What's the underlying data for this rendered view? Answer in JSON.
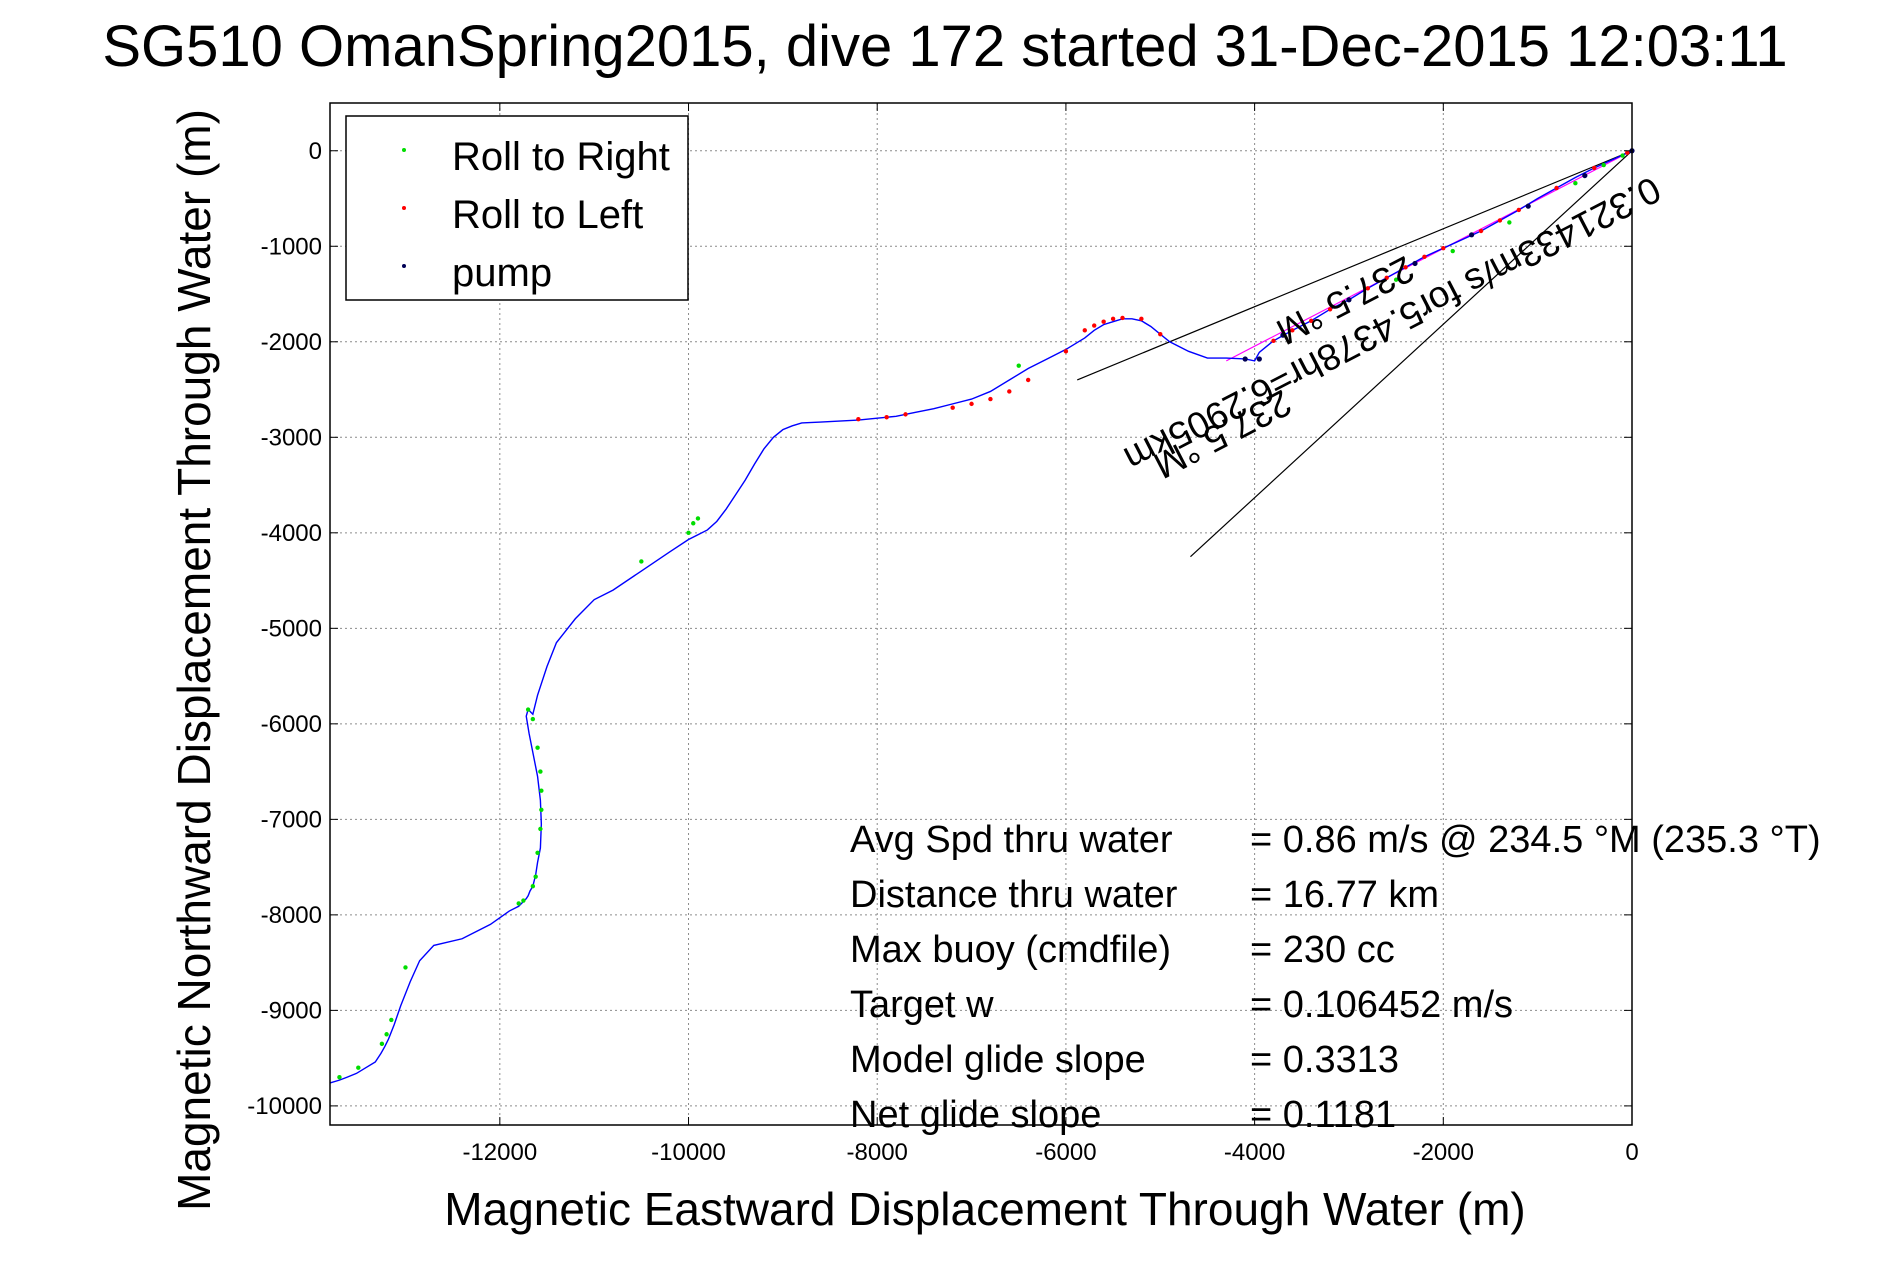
{
  "chart_data": {
    "type": "line",
    "title": "SG510 OmanSpring2015, dive 172 started 31-Dec-2015 12:03:11",
    "xlabel": "Magnetic Eastward Displacement Through Water (m)",
    "ylabel": "Magnetic Northward Displacement Through Water (m)",
    "xlim": [
      -13800,
      0
    ],
    "ylim": [
      -10200,
      500
    ],
    "grid": true,
    "x_ticks": [
      -12000,
      -10000,
      -8000,
      -6000,
      -4000,
      -2000,
      0
    ],
    "y_ticks": [
      0,
      -1000,
      -2000,
      -3000,
      -4000,
      -5000,
      -6000,
      -7000,
      -8000,
      -9000,
      -10000
    ],
    "x_tick_labels": [
      "-12000",
      "-10000",
      "-8000",
      "-6000",
      "-4000",
      "-2000",
      "0"
    ],
    "y_tick_labels": [
      "0",
      "-1000",
      "-2000",
      "-3000",
      "-4000",
      "-5000",
      "-6000",
      "-7000",
      "-8000",
      "-9000",
      "-10000"
    ],
    "legend_position": "top-left",
    "legend": [
      {
        "label": "Roll to Right",
        "color": "#00dd00"
      },
      {
        "label": "Roll to Left",
        "color": "#ff0000"
      },
      {
        "label": "pump",
        "color": "#000055"
      }
    ],
    "track_color": "#0000ff",
    "track": {
      "x": [
        0,
        -200,
        -400,
        -600,
        -800,
        -1000,
        -1200,
        -1400,
        -1600,
        -1800,
        -2000,
        -2200,
        -2400,
        -2600,
        -2800,
        -3000,
        -3200,
        -3400,
        -3600,
        -3800,
        -3950,
        -4000,
        -4100,
        -4300,
        -4500,
        -4700,
        -4900,
        -5000,
        -5100,
        -5200,
        -5300,
        -5400,
        -5500,
        -5600,
        -5700,
        -5800,
        -6000,
        -6200,
        -6400,
        -6600,
        -6800,
        -7000,
        -7200,
        -7400,
        -7600,
        -7800,
        -8000,
        -8200,
        -8400,
        -8600,
        -8800,
        -8900,
        -9000,
        -9100,
        -9200,
        -9300,
        -9400,
        -9500,
        -9600,
        -9700,
        -9800,
        -9900,
        -10000,
        -10200,
        -10500,
        -10800,
        -11000,
        -11200,
        -11400,
        -11500,
        -11600,
        -11650,
        -11700,
        -11720,
        -11690,
        -11640,
        -11600,
        -11570,
        -11560,
        -11570,
        -11600,
        -11620,
        -11650,
        -11680,
        -11700,
        -11720,
        -11760,
        -11800,
        -11900,
        -12100,
        -12400,
        -12700,
        -12850,
        -12950,
        -13050,
        -13120,
        -13180,
        -13220,
        -13260,
        -13320,
        -13420,
        -13520,
        -13620,
        -13700,
        -13800
      ],
      "y": [
        0,
        -90,
        -180,
        -280,
        -390,
        -500,
        -620,
        -730,
        -840,
        -930,
        -1020,
        -1110,
        -1220,
        -1330,
        -1440,
        -1560,
        -1660,
        -1780,
        -1880,
        -1990,
        -2110,
        -2200,
        -2180,
        -2170,
        -2170,
        -2100,
        -2000,
        -1920,
        -1840,
        -1780,
        -1760,
        -1760,
        -1790,
        -1820,
        -1880,
        -1960,
        -2080,
        -2180,
        -2280,
        -2400,
        -2520,
        -2600,
        -2650,
        -2700,
        -2740,
        -2780,
        -2800,
        -2820,
        -2830,
        -2840,
        -2850,
        -2880,
        -2920,
        -3000,
        -3120,
        -3280,
        -3450,
        -3600,
        -3750,
        -3880,
        -3970,
        -4020,
        -4070,
        -4200,
        -4400,
        -4600,
        -4700,
        -4900,
        -5150,
        -5400,
        -5700,
        -5900,
        -5850,
        -5920,
        -6100,
        -6350,
        -6550,
        -6800,
        -7050,
        -7300,
        -7450,
        -7580,
        -7700,
        -7750,
        -7800,
        -7830,
        -7870,
        -7910,
        -7960,
        -8100,
        -8250,
        -8320,
        -8480,
        -8700,
        -8950,
        -9150,
        -9300,
        -9380,
        -9450,
        -9540,
        -9600,
        -9660,
        -9700,
        -9730,
        -9760
      ]
    },
    "roll_right_points": {
      "x": [
        -11700,
        -11650,
        -11600,
        -11570,
        -11560,
        -11560,
        -11570,
        -11600,
        -11620,
        -11650,
        -11750,
        -11800,
        -13000,
        -13150,
        -13200,
        -13250,
        -13500,
        -13700,
        -9950,
        -9900,
        -10000,
        -10500,
        -6500,
        -2500,
        -1900,
        -1300,
        -600,
        -300,
        -100
      ],
      "y": [
        -5850,
        -5950,
        -6250,
        -6500,
        -6700,
        -6900,
        -7100,
        -7350,
        -7600,
        -7700,
        -7850,
        -7880,
        -8550,
        -9100,
        -9250,
        -9350,
        -9600,
        -9700,
        -3900,
        -3850,
        -4000,
        -4300,
        -2250,
        -1350,
        -1050,
        -750,
        -340,
        -150,
        -50
      ]
    },
    "roll_left_points": {
      "x": [
        -5000,
        -5200,
        -5400,
        -5500,
        -5600,
        -5700,
        -5800,
        -6000,
        -6400,
        -6600,
        -6800,
        -7000,
        -7200,
        -7700,
        -7900,
        -8200,
        -3800,
        -3600,
        -3400,
        -3200,
        -3000,
        -2800,
        -2600,
        -2400,
        -2200,
        -2000,
        -1600,
        -1400,
        -1200,
        -800,
        -400,
        -50
      ],
      "y": [
        -1920,
        -1760,
        -1750,
        -1760,
        -1790,
        -1830,
        -1880,
        -2100,
        -2400,
        -2520,
        -2600,
        -2650,
        -2690,
        -2760,
        -2790,
        -2810,
        -1990,
        -1880,
        -1780,
        -1660,
        -1560,
        -1440,
        -1330,
        -1220,
        -1110,
        -1020,
        -840,
        -730,
        -620,
        -390,
        -180,
        -20
      ]
    },
    "pump_points": {
      "x": [
        -3950,
        -4100,
        -3700,
        -3000,
        -2300,
        -1700,
        -1100,
        -500,
        0
      ],
      "y": [
        -2180,
        -2180,
        -1930,
        -1560,
        -1180,
        -880,
        -580,
        -260,
        0
      ]
    },
    "reference_lines": {
      "color": "#000000",
      "wedge_upper": {
        "x": [
          0,
          -5880
        ],
        "y": [
          0,
          -2400
        ]
      },
      "wedge_lower": {
        "x": [
          0,
          -4680
        ],
        "y": [
          0,
          -4250
        ]
      },
      "heading_line": {
        "x": [
          0,
          -4300
        ],
        "y": [
          0,
          -2200
        ],
        "color": "#ff00ff"
      }
    },
    "rotated_annotations": [
      {
        "text": "0.321433m/s for5.4378hr=6.2905km",
        "x": -2600,
        "y": -1700
      },
      {
        "text": "237.5 °M",
        "x": -3100,
        "y": -1450
      },
      {
        "text": "237.5 °M",
        "x": -4400,
        "y": -2850
      }
    ],
    "stats": [
      {
        "label": "Avg Spd thru water",
        "value": "=  0.86 m/s @ 234.5 °M (235.3 °T)"
      },
      {
        "label": "Distance thru water",
        "value": "= 16.77 km"
      },
      {
        "label": "Max buoy (cmdfile)",
        "value": "= 230 cc"
      },
      {
        "label": "Target w",
        "value": "= 0.106452 m/s"
      },
      {
        "label": "Model glide slope",
        "value": "= 0.3313"
      },
      {
        "label": "Net glide slope",
        "value": "= 0.1181"
      }
    ]
  }
}
